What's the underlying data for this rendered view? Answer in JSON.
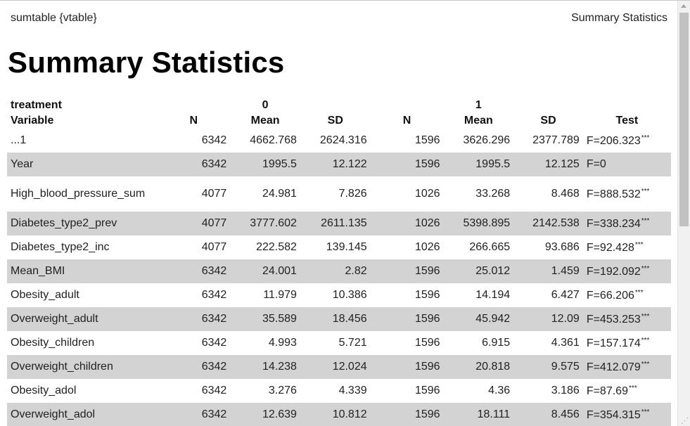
{
  "viewer": {
    "left_title": "sumtable {vtable}",
    "right_title": "Summary Statistics"
  },
  "page_title": "Summary Statistics",
  "table": {
    "group_label": "treatment",
    "groups": [
      "0",
      "1"
    ],
    "headers": {
      "variable": "Variable",
      "n": "N",
      "mean": "Mean",
      "sd": "SD",
      "test": "Test"
    },
    "significance_marker": "***",
    "rows": [
      {
        "var": "...1",
        "n0": "6342",
        "m0": "4662.768",
        "s0": "2624.316",
        "n1": "1596",
        "m1": "3626.296",
        "s1": "2377.789",
        "test": "F=206.323",
        "sig": "***"
      },
      {
        "var": "Year",
        "n0": "6342",
        "m0": "1995.5",
        "s0": "12.122",
        "n1": "1596",
        "m1": "1995.5",
        "s1": "12.125",
        "test": "F=0",
        "sig": ""
      },
      {
        "var": "High_blood_pressure_sum",
        "n0": "4077",
        "m0": "24.981",
        "s0": "7.826",
        "n1": "1026",
        "m1": "33.268",
        "s1": "8.468",
        "test": "F=888.532",
        "sig": "***"
      },
      {
        "var": "Diabetes_type2_prev",
        "n0": "4077",
        "m0": "3777.602",
        "s0": "2611.135",
        "n1": "1026",
        "m1": "5398.895",
        "s1": "2142.538",
        "test": "F=338.234",
        "sig": "***"
      },
      {
        "var": "Diabetes_type2_inc",
        "n0": "4077",
        "m0": "222.582",
        "s0": "139.145",
        "n1": "1026",
        "m1": "266.665",
        "s1": "93.686",
        "test": "F=92.428",
        "sig": "***"
      },
      {
        "var": "Mean_BMI",
        "n0": "6342",
        "m0": "24.001",
        "s0": "2.82",
        "n1": "1596",
        "m1": "25.012",
        "s1": "1.459",
        "test": "F=192.092",
        "sig": "***"
      },
      {
        "var": "Obesity_adult",
        "n0": "6342",
        "m0": "11.979",
        "s0": "10.386",
        "n1": "1596",
        "m1": "14.194",
        "s1": "6.427",
        "test": "F=66.206",
        "sig": "***"
      },
      {
        "var": "Overweight_adult",
        "n0": "6342",
        "m0": "35.589",
        "s0": "18.456",
        "n1": "1596",
        "m1": "45.942",
        "s1": "12.09",
        "test": "F=453.253",
        "sig": "***"
      },
      {
        "var": "Obesity_children",
        "n0": "6342",
        "m0": "4.993",
        "s0": "5.721",
        "n1": "1596",
        "m1": "6.915",
        "s1": "4.361",
        "test": "F=157.174",
        "sig": "***"
      },
      {
        "var": "Overweight_children",
        "n0": "6342",
        "m0": "14.238",
        "s0": "12.024",
        "n1": "1596",
        "m1": "20.818",
        "s1": "9.575",
        "test": "F=412.079",
        "sig": "***"
      },
      {
        "var": "Obesity_adol",
        "n0": "6342",
        "m0": "3.276",
        "s0": "4.339",
        "n1": "1596",
        "m1": "4.36",
        "s1": "3.186",
        "test": "F=87.69",
        "sig": "***"
      },
      {
        "var": "Overweight_adol",
        "n0": "6342",
        "m0": "12.639",
        "s0": "10.812",
        "n1": "1596",
        "m1": "18.111",
        "s1": "8.456",
        "test": "F=354.315",
        "sig": "***"
      }
    ]
  },
  "colors": {
    "row_shade": "#d3d3d3",
    "scrollbar_track": "#f1f1f1",
    "scrollbar_thumb": "#c1c1c1"
  },
  "icons": {
    "scroll_up": "triangle-up",
    "resize_grip": "diagonal-grip"
  }
}
